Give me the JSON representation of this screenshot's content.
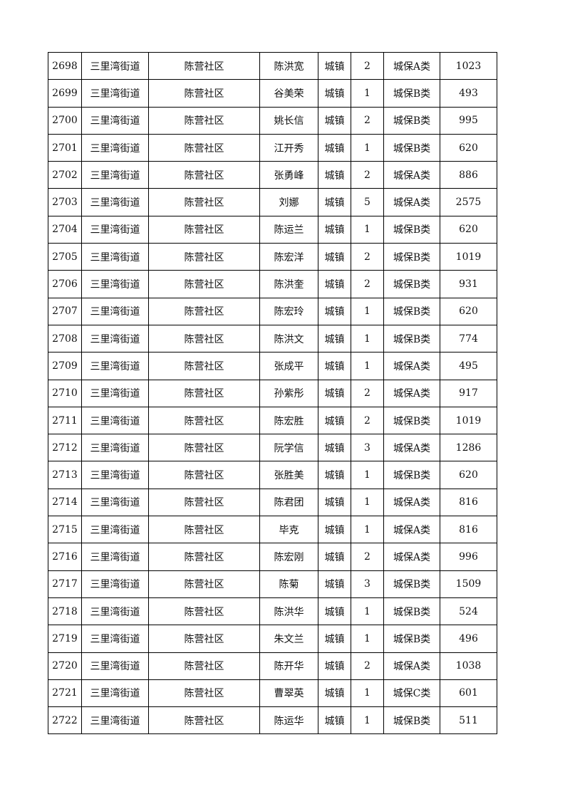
{
  "table": {
    "rows": [
      [
        "2698",
        "三里湾街道",
        "陈营社区",
        "陈洪宽",
        "城镇",
        "2",
        "城保A类",
        "1023"
      ],
      [
        "2699",
        "三里湾街道",
        "陈营社区",
        "谷美荣",
        "城镇",
        "1",
        "城保B类",
        "493"
      ],
      [
        "2700",
        "三里湾街道",
        "陈营社区",
        "姚长信",
        "城镇",
        "2",
        "城保B类",
        "995"
      ],
      [
        "2701",
        "三里湾街道",
        "陈营社区",
        "江开秀",
        "城镇",
        "1",
        "城保B类",
        "620"
      ],
      [
        "2702",
        "三里湾街道",
        "陈营社区",
        "张勇峰",
        "城镇",
        "2",
        "城保A类",
        "886"
      ],
      [
        "2703",
        "三里湾街道",
        "陈营社区",
        "刘娜",
        "城镇",
        "5",
        "城保A类",
        "2575"
      ],
      [
        "2704",
        "三里湾街道",
        "陈营社区",
        "陈运兰",
        "城镇",
        "1",
        "城保B类",
        "620"
      ],
      [
        "2705",
        "三里湾街道",
        "陈营社区",
        "陈宏洋",
        "城镇",
        "2",
        "城保B类",
        "1019"
      ],
      [
        "2706",
        "三里湾街道",
        "陈营社区",
        "陈洪奎",
        "城镇",
        "2",
        "城保B类",
        "931"
      ],
      [
        "2707",
        "三里湾街道",
        "陈营社区",
        "陈宏玲",
        "城镇",
        "1",
        "城保B类",
        "620"
      ],
      [
        "2708",
        "三里湾街道",
        "陈营社区",
        "陈洪文",
        "城镇",
        "1",
        "城保B类",
        "774"
      ],
      [
        "2709",
        "三里湾街道",
        "陈营社区",
        "张成平",
        "城镇",
        "1",
        "城保A类",
        "495"
      ],
      [
        "2710",
        "三里湾街道",
        "陈营社区",
        "孙紫彤",
        "城镇",
        "2",
        "城保A类",
        "917"
      ],
      [
        "2711",
        "三里湾街道",
        "陈营社区",
        "陈宏胜",
        "城镇",
        "2",
        "城保B类",
        "1019"
      ],
      [
        "2712",
        "三里湾街道",
        "陈营社区",
        "阮学信",
        "城镇",
        "3",
        "城保A类",
        "1286"
      ],
      [
        "2713",
        "三里湾街道",
        "陈营社区",
        "张胜美",
        "城镇",
        "1",
        "城保B类",
        "620"
      ],
      [
        "2714",
        "三里湾街道",
        "陈营社区",
        "陈君团",
        "城镇",
        "1",
        "城保A类",
        "816"
      ],
      [
        "2715",
        "三里湾街道",
        "陈营社区",
        "毕克",
        "城镇",
        "1",
        "城保A类",
        "816"
      ],
      [
        "2716",
        "三里湾街道",
        "陈营社区",
        "陈宏刚",
        "城镇",
        "2",
        "城保A类",
        "996"
      ],
      [
        "2717",
        "三里湾街道",
        "陈营社区",
        "陈菊",
        "城镇",
        "3",
        "城保B类",
        "1509"
      ],
      [
        "2718",
        "三里湾街道",
        "陈营社区",
        "陈洪华",
        "城镇",
        "1",
        "城保B类",
        "524"
      ],
      [
        "2719",
        "三里湾街道",
        "陈营社区",
        "朱文兰",
        "城镇",
        "1",
        "城保B类",
        "496"
      ],
      [
        "2720",
        "三里湾街道",
        "陈营社区",
        "陈开华",
        "城镇",
        "2",
        "城保A类",
        "1038"
      ],
      [
        "2721",
        "三里湾街道",
        "陈营社区",
        "曹翠英",
        "城镇",
        "1",
        "城保C类",
        "601"
      ],
      [
        "2722",
        "三里湾街道",
        "陈营社区",
        "陈运华",
        "城镇",
        "1",
        "城保B类",
        "511"
      ]
    ]
  }
}
